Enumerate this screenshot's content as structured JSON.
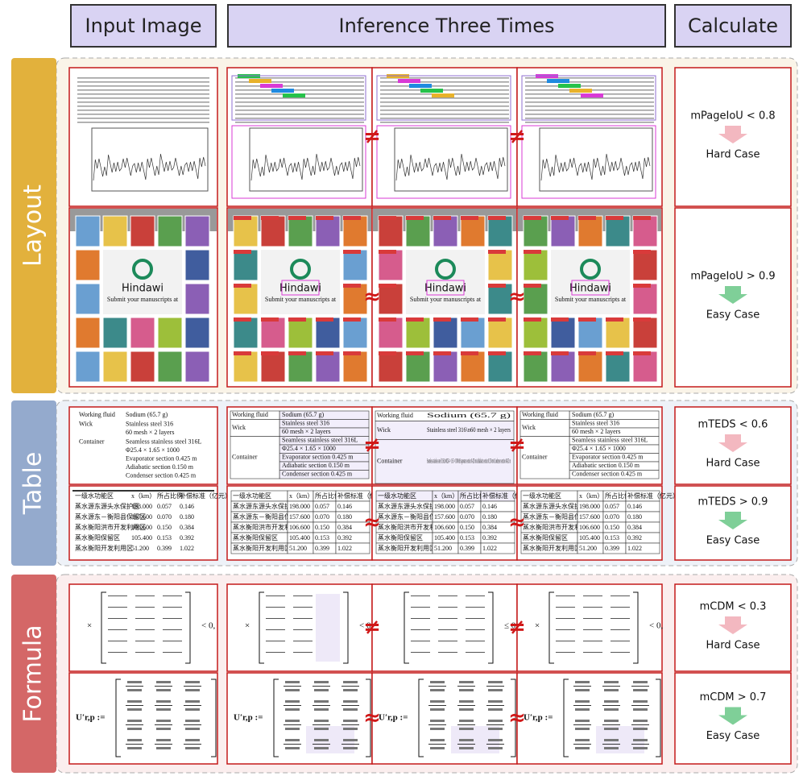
{
  "header": {
    "columns": [
      "Input Image",
      "Inference Three Times",
      "Calculate"
    ]
  },
  "sections": [
    {
      "label": "Layout",
      "rows": [
        {
          "metric": "mPageIoU < 0.8",
          "verdict": "Hard Case",
          "relation": "≠"
        },
        {
          "metric": "mPageIoU > 0.9",
          "verdict": "Easy Case",
          "relation": "≈"
        }
      ]
    },
    {
      "label": "Table",
      "rows": [
        {
          "metric": "mTEDS < 0.6",
          "verdict": "Hard Case",
          "relation": "≠"
        },
        {
          "metric": "mTEDS > 0.9",
          "verdict": "Easy Case",
          "relation": "≈"
        }
      ]
    },
    {
      "label": "Formula",
      "rows": [
        {
          "metric": "mCDM < 0.3",
          "verdict": "Hard Case",
          "relation": "≠"
        },
        {
          "metric": "mCDM > 0.7",
          "verdict": "Easy Case",
          "relation": "≈"
        }
      ]
    }
  ],
  "layout_sample": {
    "logo": "Hindawi",
    "caption": "Submit your manuscripts at"
  },
  "table_1": {
    "rows": [
      [
        "Working fluid",
        "Sodium (65.7 g)"
      ],
      [
        "Wick",
        "Stainless steel 316",
        "60 mesh × 2 layers"
      ],
      [
        "Container",
        "Seamless stainless steel 316L",
        "Φ25.4 × 1.65 × 1000",
        "Evaporator section 0.425 m",
        "Adiabatic section 0.150 m",
        "Condenser section 0.425 m"
      ]
    ],
    "merged": [
      "Stainless steel 316\\n60 mesh × 2 layers",
      "Seamless stainless steel 316L\\nΦ25.4 × 1.65 × 1000\\nEvaporator section 0.425 m\\nAdiabatic section 0.150 m\\nCondenser section 0.425 m"
    ]
  },
  "table_2": {
    "header": [
      "一级水功能区",
      "x（km）",
      "所占比例",
      "补偿标准（亿元）"
    ],
    "rows": [
      [
        "蒸水源东源头水保护区",
        "198.000",
        "0.057",
        "0.146"
      ],
      [
        "蒸水源东－衡阳县保留区",
        "157.600",
        "0.070",
        "0.180"
      ],
      [
        "蒸水衡阳洪市开发利用区",
        "106.600",
        "0.150",
        "0.384"
      ],
      [
        "蒸水衡阳保留区",
        "105.400",
        "0.153",
        "0.392"
      ],
      [
        "蒸水衡阳开发利用区",
        "51.200",
        "0.399",
        "1.022"
      ]
    ]
  },
  "formulas": {
    "first": [
      "×",
      "< 0,",
      "≤ 0,"
    ],
    "second": "U′r,p :="
  }
}
